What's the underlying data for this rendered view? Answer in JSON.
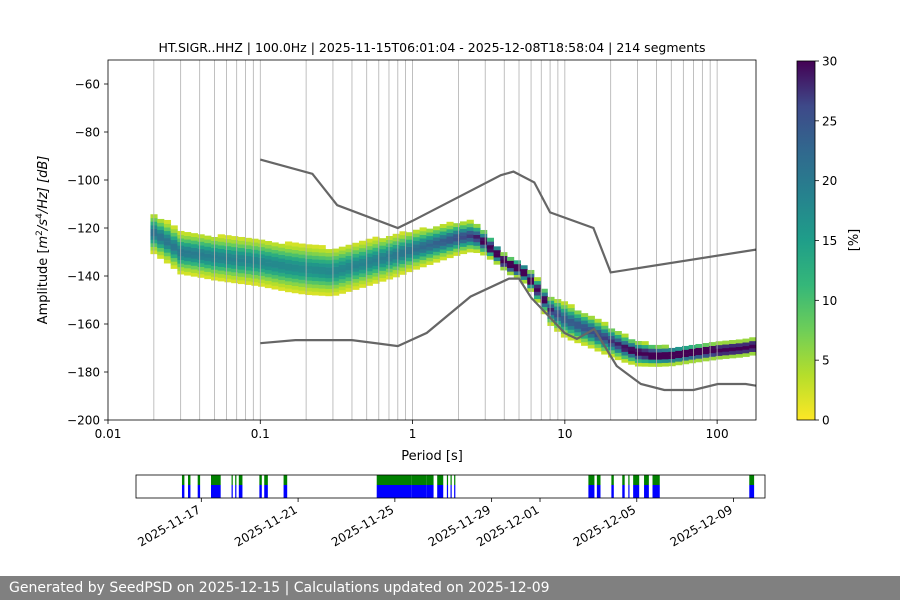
{
  "chart_data": [
    {
      "type": "heatmap",
      "title": "HT.SIGR..HHZ | 100.0Hz | 2025-11-15T06:01:04 - 2025-12-08T18:58:04 | 214 segments",
      "xlabel": "Period [s]",
      "ylabel": "Amplitude [m²/s⁴/Hz] [dB]",
      "ylabel_parts": {
        "prefix": "Amplitude [",
        "m": "m",
        "exp1": "2",
        "mid": "/s",
        "exp2": "4",
        "suffix": "/Hz] [dB]"
      },
      "xscale": "log",
      "xlim": [
        0.01,
        180
      ],
      "ylim": [
        -200,
        -50
      ],
      "xticks": [
        {
          "value": 0.01,
          "label": "0.01"
        },
        {
          "value": 0.1,
          "label": "0.1"
        },
        {
          "value": 1,
          "label": "1"
        },
        {
          "value": 10,
          "label": "10"
        },
        {
          "value": 100,
          "label": "100"
        }
      ],
      "yticks": [
        {
          "value": -60,
          "label": "−60"
        },
        {
          "value": -80,
          "label": "−80"
        },
        {
          "value": -100,
          "label": "−100"
        },
        {
          "value": -120,
          "label": "−120"
        },
        {
          "value": -140,
          "label": "−140"
        },
        {
          "value": -160,
          "label": "−160"
        },
        {
          "value": -180,
          "label": "−180"
        },
        {
          "value": -200,
          "label": "−200"
        }
      ],
      "grid_periods": [
        0.02,
        0.03,
        0.04,
        0.05,
        0.06,
        0.07,
        0.08,
        0.09,
        0.1,
        0.2,
        0.3,
        0.4,
        0.5,
        0.6,
        0.7,
        0.8,
        0.9,
        1,
        2,
        3,
        4,
        5,
        6,
        7,
        8,
        9,
        10,
        20,
        30,
        40,
        50,
        60,
        70,
        80,
        90,
        100
      ],
      "mode_curve": {
        "periods": [
          0.019,
          0.02,
          0.025,
          0.03,
          0.04,
          0.05,
          0.07,
          0.1,
          0.15,
          0.2,
          0.3,
          0.4,
          0.6,
          0.8,
          1,
          1.5,
          2,
          2.5,
          3,
          3.5,
          4,
          4.5,
          5,
          5.5,
          6,
          7,
          8,
          10,
          15,
          20,
          25,
          30,
          40,
          50,
          70,
          100,
          150,
          180
        ],
        "db": [
          -118,
          -122,
          -126,
          -130,
          -131,
          -132,
          -133,
          -134,
          -136,
          -137,
          -138,
          -136,
          -133,
          -131,
          -129,
          -126,
          -124,
          -123,
          -126,
          -130,
          -134,
          -136,
          -137,
          -139,
          -142,
          -148,
          -154,
          -158,
          -163,
          -167,
          -170,
          -172,
          -173,
          -173,
          -172,
          -171,
          -170,
          -169
        ]
      },
      "spread_halfwidth_db": {
        "periods": [
          0.019,
          0.05,
          0.2,
          0.6,
          1,
          2.5,
          4,
          6,
          10,
          20,
          40,
          100,
          180
        ],
        "db": [
          8,
          9,
          10,
          9,
          8,
          6,
          3,
          4,
          7,
          6,
          4,
          3,
          3
        ]
      },
      "reference_curves": [
        {
          "name": "upper-noise-model",
          "periods": [
            0.1,
            0.22,
            0.32,
            0.8,
            1,
            3.8,
            4.6,
            6.3,
            8,
            15.4,
            20,
            180
          ],
          "db": [
            -91.5,
            -97.4,
            -110.5,
            -120,
            -117,
            -98,
            -96.5,
            -101,
            -113.5,
            -120,
            -138.5,
            -129
          ]
        },
        {
          "name": "lower-noise-model",
          "periods": [
            0.1,
            0.17,
            0.4,
            0.8,
            1.24,
            2.4,
            4.3,
            5,
            6,
            10,
            12,
            15.6,
            21.9,
            31.6,
            45,
            70,
            101,
            154,
            180
          ],
          "db": [
            -168,
            -166.7,
            -166.7,
            -169.2,
            -163.7,
            -148.6,
            -141.1,
            -141.1,
            -149,
            -163.8,
            -166.2,
            -162.1,
            -177.5,
            -185,
            -187.5,
            -187.5,
            -185,
            -185,
            -185.7
          ]
        }
      ],
      "colorbar": {
        "label": "[%]",
        "min": 0,
        "max": 30,
        "ticks": [
          "0",
          "5",
          "10",
          "15",
          "20",
          "25",
          "30"
        ],
        "colormap": "viridis_r"
      }
    },
    {
      "type": "timeline",
      "date_ticks": [
        "2025-11-17",
        "2025-11-21",
        "2025-11-25",
        "2025-11-29",
        "2025-12-01",
        "2025-12-05",
        "2025-12-09"
      ],
      "tick_days": [
        2,
        6,
        10,
        14,
        16,
        20,
        24
      ],
      "range_days": [
        -0.7,
        25.3
      ],
      "coverage_blocks_days": [
        [
          1.2,
          1.3
        ],
        [
          1.45,
          1.55
        ],
        [
          1.85,
          1.95
        ],
        [
          2.4,
          2.8
        ],
        [
          3.25,
          3.3
        ],
        [
          3.4,
          3.45
        ],
        [
          3.55,
          3.7
        ],
        [
          4.4,
          4.5
        ],
        [
          4.6,
          4.75
        ],
        [
          5.4,
          5.55
        ],
        [
          9.25,
          10.7
        ],
        [
          10.7,
          11.3
        ],
        [
          11.3,
          11.6
        ],
        [
          11.75,
          12.0
        ],
        [
          12.15,
          12.2
        ],
        [
          12.3,
          12.35
        ],
        [
          12.45,
          12.5
        ],
        [
          18.0,
          18.25
        ],
        [
          18.35,
          18.5
        ],
        [
          18.95,
          19.05
        ],
        [
          19.4,
          19.5
        ],
        [
          19.65,
          19.7
        ],
        [
          19.85,
          20.1
        ],
        [
          20.3,
          20.5
        ],
        [
          20.65,
          20.95
        ],
        [
          24.65,
          24.85
        ]
      ],
      "colors": {
        "available": "#008000",
        "used": "#0000ff"
      }
    }
  ],
  "footer": {
    "text": "Generated by SeedPSD on 2025-12-15 | Calculations updated on 2025-12-09"
  }
}
